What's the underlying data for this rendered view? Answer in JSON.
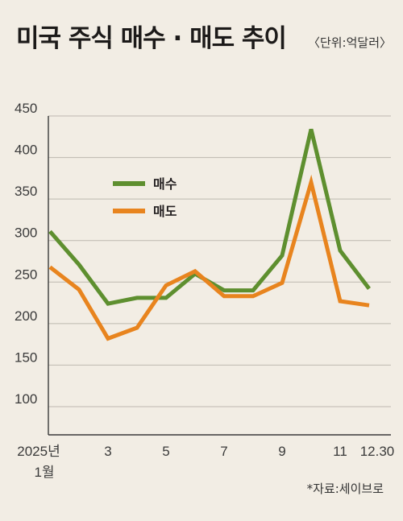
{
  "header": {
    "title": "미국 주식 매수 · 매도 추이",
    "unit": "〈단위:억달러〉"
  },
  "footer": {
    "source": "*자료:세이브로"
  },
  "colors": {
    "buy": "#5e8f2f",
    "sell": "#e8841e",
    "grid": "#bdb8af",
    "background": "#f2ede4"
  },
  "chart_data": {
    "type": "line",
    "ylim": [
      100,
      450
    ],
    "yticks": [
      "100",
      "150",
      "200",
      "250",
      "300",
      "350",
      "400",
      "450"
    ],
    "grid": "horizontal",
    "legend_position": "upper-left",
    "x_tick_labels": [
      {
        "index": 0,
        "line1": "2025년",
        "line2": "1월"
      },
      {
        "index": 2,
        "line1": "3",
        "line2": ""
      },
      {
        "index": 4,
        "line1": "5",
        "line2": ""
      },
      {
        "index": 6,
        "line1": "7",
        "line2": ""
      },
      {
        "index": 8,
        "line1": "9",
        "line2": ""
      },
      {
        "index": 10,
        "line1": "11",
        "line2": ""
      },
      {
        "index": 11,
        "line1": "12.30",
        "line2": ""
      }
    ],
    "x": [
      "2025-01",
      "2025-02",
      "2025-03",
      "2025-04",
      "2025-05",
      "2025-06",
      "2025-07",
      "2025-08",
      "2025-09",
      "2025-10",
      "2025-11",
      "2025-12-30"
    ],
    "series": [
      {
        "name": "매수",
        "color": "#5e8f2f",
        "values": [
          311,
          271,
          224,
          231,
          231,
          260,
          240,
          240,
          282,
          434,
          288,
          242
        ]
      },
      {
        "name": "매도",
        "color": "#e8841e",
        "values": [
          268,
          241,
          182,
          195,
          246,
          263,
          233,
          233,
          249,
          370,
          227,
          222
        ]
      }
    ]
  }
}
